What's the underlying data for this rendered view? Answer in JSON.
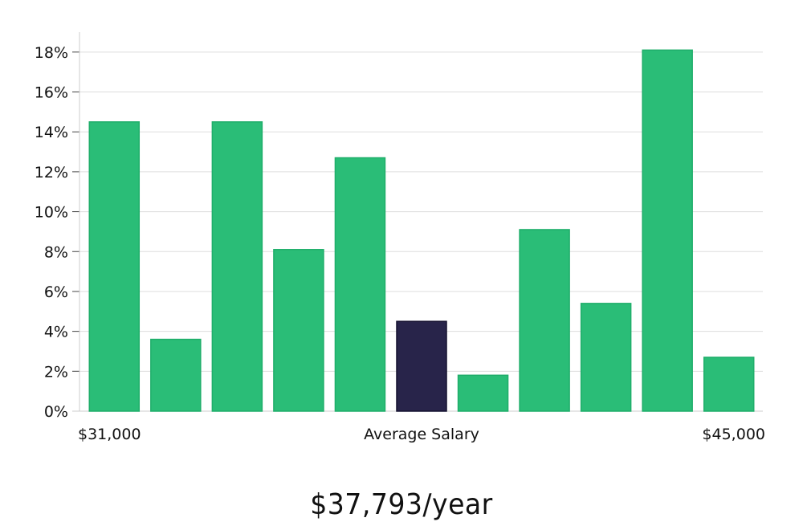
{
  "chart_data": {
    "type": "bar",
    "title": "",
    "xlabel": "Average Salary",
    "ylabel": "",
    "range_start_label": "$31,000",
    "range_end_label": "$45,000",
    "ylim": [
      0,
      19
    ],
    "yticks": [
      0,
      2,
      4,
      6,
      8,
      10,
      12,
      14,
      16,
      18
    ],
    "ytick_labels": [
      "0%",
      "2%",
      "4%",
      "6%",
      "8%",
      "10%",
      "12%",
      "14%",
      "16%",
      "18%"
    ],
    "values": [
      14.5,
      3.6,
      14.5,
      8.1,
      12.7,
      4.5,
      1.8,
      9.1,
      5.4,
      18.1,
      2.7
    ],
    "highlight_index": 5,
    "grid": true,
    "colors": {
      "bar": "#2abd77",
      "bar_edge": "#1fae6a",
      "highlight": "#28244a",
      "highlight_edge": "#151230",
      "grid": "#dddddd",
      "axis": "#cccccc"
    }
  },
  "salary": {
    "value_text": "$37,793/year"
  }
}
